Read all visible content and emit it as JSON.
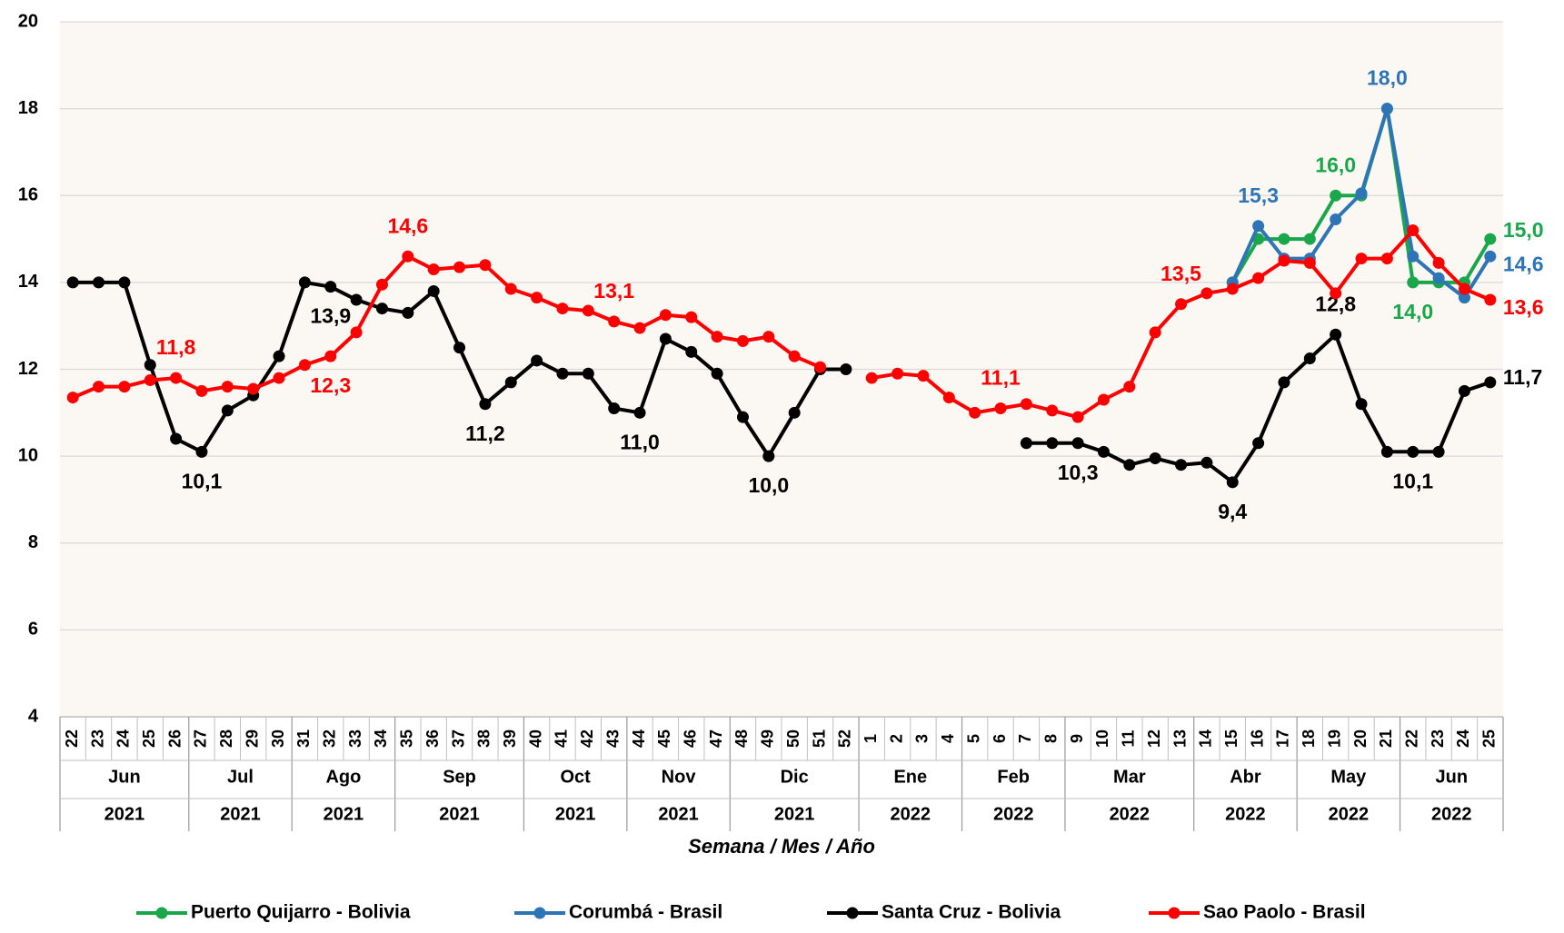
{
  "chart_data": {
    "type": "line",
    "x_title": "Semana / Mes / Año",
    "month_groups": [
      {
        "month": "Jun",
        "year": "2021",
        "weeks": [
          "22",
          "23",
          "24",
          "25",
          "26"
        ]
      },
      {
        "month": "Jul",
        "year": "2021",
        "weeks": [
          "27",
          "28",
          "29",
          "30"
        ]
      },
      {
        "month": "Ago",
        "year": "2021",
        "weeks": [
          "31",
          "32",
          "33",
          "34"
        ]
      },
      {
        "month": "Sep",
        "year": "2021",
        "weeks": [
          "35",
          "36",
          "37",
          "38",
          "39"
        ]
      },
      {
        "month": "Oct",
        "year": "2021",
        "weeks": [
          "40",
          "41",
          "42",
          "43"
        ]
      },
      {
        "month": "Nov",
        "year": "2021",
        "weeks": [
          "44",
          "45",
          "46",
          "47"
        ]
      },
      {
        "month": "Dic",
        "year": "2021",
        "weeks": [
          "48",
          "49",
          "50",
          "51",
          "52"
        ]
      },
      {
        "month": "Ene",
        "year": "2022",
        "weeks": [
          "1",
          "2",
          "3",
          "4"
        ]
      },
      {
        "month": "Feb",
        "year": "2022",
        "weeks": [
          "5",
          "6",
          "7",
          "8"
        ]
      },
      {
        "month": "Mar",
        "year": "2022",
        "weeks": [
          "9",
          "10",
          "11",
          "12",
          "13"
        ]
      },
      {
        "month": "Abr",
        "year": "2022",
        "weeks": [
          "14",
          "15",
          "16",
          "17"
        ]
      },
      {
        "month": "May",
        "year": "2022",
        "weeks": [
          "18",
          "19",
          "20",
          "21"
        ]
      },
      {
        "month": "Jun",
        "year": "2022",
        "weeks": [
          "22",
          "23",
          "24",
          "25"
        ]
      }
    ],
    "ylim": [
      4,
      20
    ],
    "yticks": [
      4,
      6,
      8,
      10,
      12,
      14,
      16,
      18,
      20
    ],
    "grid": true,
    "legend": "bottom",
    "series": [
      {
        "name": "Puerto Quijarro - Bolivia",
        "color": "#1aa64a",
        "values": [
          null,
          null,
          null,
          null,
          null,
          null,
          null,
          null,
          null,
          null,
          null,
          null,
          null,
          null,
          null,
          null,
          null,
          null,
          null,
          null,
          null,
          null,
          null,
          null,
          null,
          null,
          null,
          null,
          null,
          null,
          null,
          null,
          null,
          null,
          null,
          null,
          null,
          null,
          null,
          null,
          null,
          null,
          null,
          null,
          null,
          14.0,
          15.0,
          15.0,
          15.0,
          16.0,
          16.0,
          18.0,
          14.0,
          14.0,
          14.0,
          15.0
        ],
        "value_labels": [
          null,
          null,
          null,
          null,
          null,
          null,
          null,
          null,
          null,
          null,
          null,
          null,
          null,
          null,
          null,
          null,
          null,
          null,
          null,
          null,
          null,
          null,
          null,
          null,
          null,
          null,
          null,
          null,
          null,
          null,
          null,
          null,
          null,
          null,
          null,
          null,
          null,
          null,
          null,
          null,
          null,
          null,
          null,
          null,
          null,
          null,
          null,
          null,
          null,
          "16,0",
          null,
          null,
          "14,0",
          null,
          null,
          "15,0"
        ]
      },
      {
        "name": "Corumbá - Brasil",
        "color": "#2e75b6",
        "values": [
          null,
          null,
          null,
          null,
          null,
          null,
          null,
          null,
          null,
          null,
          null,
          null,
          null,
          null,
          null,
          null,
          null,
          null,
          null,
          null,
          null,
          null,
          null,
          null,
          null,
          null,
          null,
          null,
          null,
          null,
          null,
          null,
          null,
          null,
          null,
          null,
          null,
          null,
          null,
          null,
          null,
          null,
          null,
          null,
          null,
          14.0,
          15.3,
          14.55,
          14.55,
          15.45,
          16.05,
          18.0,
          14.6,
          14.1,
          13.65,
          14.6
        ],
        "value_labels": [
          null,
          null,
          null,
          null,
          null,
          null,
          null,
          null,
          null,
          null,
          null,
          null,
          null,
          null,
          null,
          null,
          null,
          null,
          null,
          null,
          null,
          null,
          null,
          null,
          null,
          null,
          null,
          null,
          null,
          null,
          null,
          null,
          null,
          null,
          null,
          null,
          null,
          null,
          null,
          null,
          null,
          null,
          null,
          null,
          null,
          null,
          "15,3",
          null,
          null,
          null,
          null,
          "18,0",
          null,
          null,
          null,
          "14,6"
        ]
      },
      {
        "name": "Santa Cruz - Bolivia",
        "color": "#000000",
        "values": [
          14.0,
          14.0,
          14.0,
          12.1,
          10.4,
          10.1,
          11.05,
          11.4,
          12.3,
          14.0,
          13.9,
          13.6,
          13.4,
          13.3,
          13.8,
          12.5,
          11.2,
          11.7,
          12.2,
          11.9,
          11.9,
          11.1,
          11.0,
          12.7,
          12.4,
          11.9,
          10.9,
          10.0,
          11.0,
          12.0,
          12.0,
          null,
          null,
          null,
          null,
          null,
          null,
          10.3,
          10.3,
          10.3,
          10.1,
          9.8,
          9.95,
          9.8,
          9.85,
          9.4,
          10.3,
          11.7,
          12.25,
          12.8,
          11.2,
          10.1,
          10.1,
          10.1,
          11.5,
          11.7
        ],
        "value_labels": [
          null,
          null,
          null,
          null,
          null,
          "10,1",
          null,
          null,
          null,
          null,
          "13,9",
          null,
          null,
          null,
          null,
          null,
          "11,2",
          null,
          null,
          null,
          null,
          null,
          "11,0",
          null,
          null,
          null,
          null,
          "10,0",
          null,
          null,
          null,
          null,
          null,
          null,
          null,
          null,
          null,
          null,
          null,
          "10,3",
          null,
          null,
          null,
          null,
          null,
          "9,4",
          null,
          null,
          null,
          "12,8",
          null,
          null,
          "10,1",
          null,
          null,
          "11,7"
        ]
      },
      {
        "name": "Sao Paolo - Brasil",
        "color": "#ff0000",
        "values": [
          11.35,
          11.6,
          11.6,
          11.75,
          11.8,
          11.5,
          11.6,
          11.55,
          11.8,
          12.1,
          12.3,
          12.85,
          13.95,
          14.6,
          14.3,
          14.35,
          14.4,
          13.85,
          13.65,
          13.4,
          13.35,
          13.1,
          12.95,
          13.25,
          13.2,
          12.75,
          12.65,
          12.75,
          12.3,
          12.05,
          null,
          11.8,
          11.9,
          11.85,
          11.35,
          11.0,
          11.1,
          11.2,
          11.05,
          10.9,
          11.3,
          11.6,
          12.85,
          13.5,
          13.75,
          13.85,
          14.1,
          14.5,
          14.45,
          13.75,
          14.55,
          14.55,
          15.2,
          14.45,
          13.85,
          13.6
        ],
        "value_labels": [
          null,
          null,
          null,
          null,
          "11,8",
          null,
          null,
          null,
          null,
          null,
          "12,3",
          null,
          null,
          "14,6",
          null,
          null,
          null,
          null,
          null,
          null,
          null,
          "13,1",
          null,
          null,
          null,
          null,
          null,
          null,
          null,
          null,
          null,
          null,
          null,
          null,
          null,
          null,
          "11,1",
          null,
          null,
          null,
          null,
          null,
          null,
          "13,5",
          null,
          null,
          null,
          null,
          null,
          null,
          null,
          null,
          null,
          null,
          null,
          "13,6"
        ]
      }
    ]
  }
}
